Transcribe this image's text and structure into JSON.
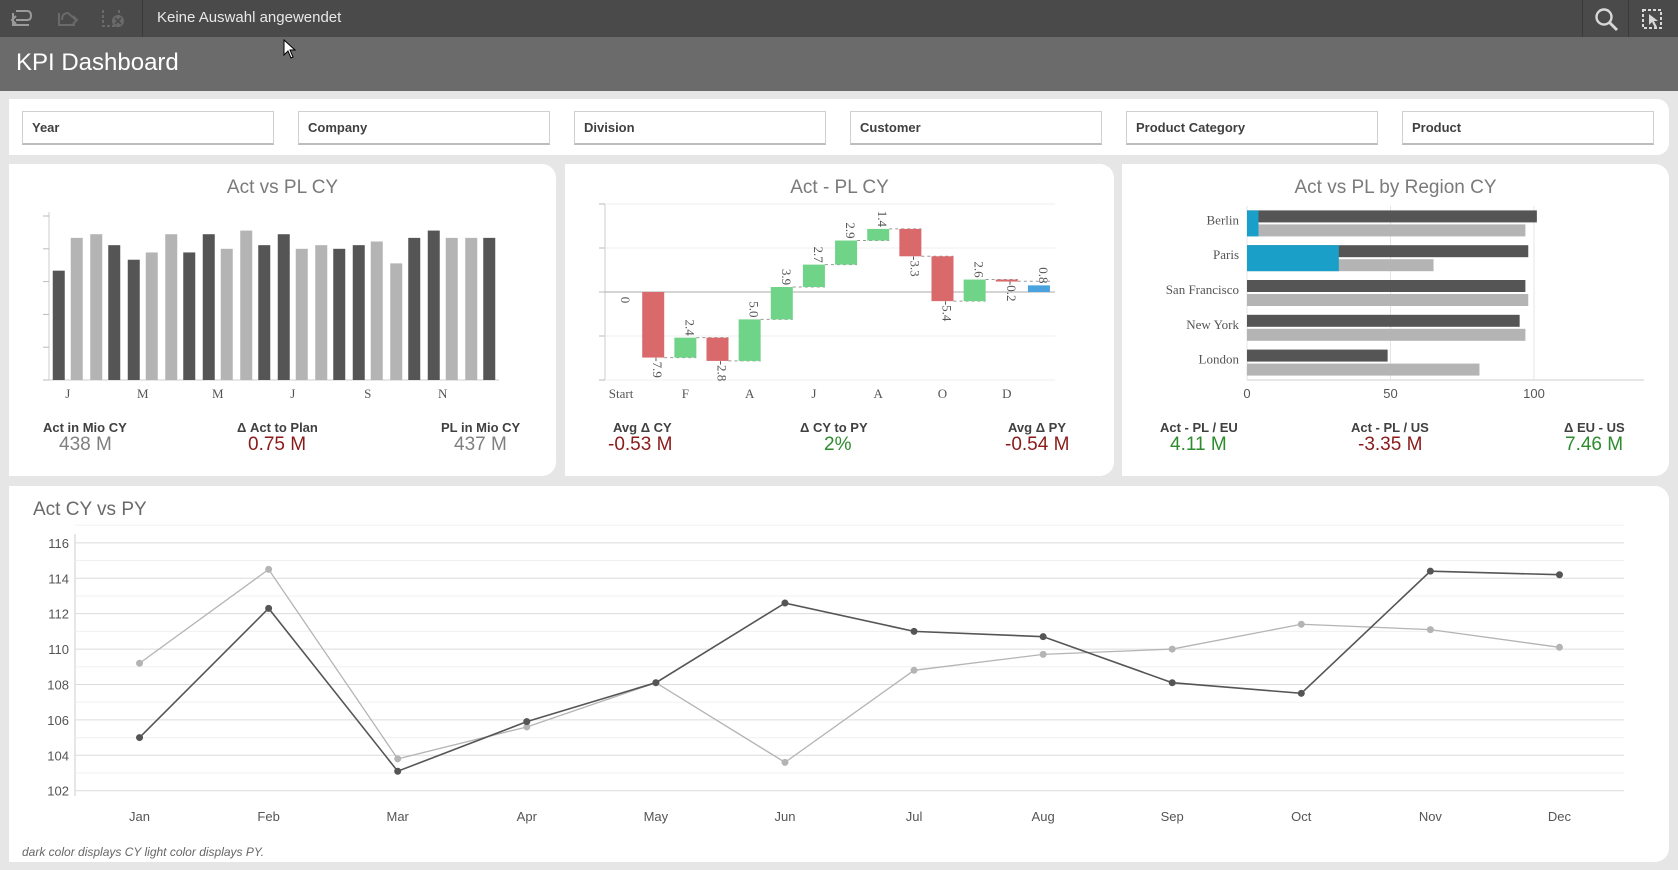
{
  "toolbar": {
    "selection_text": "Keine Auswahl angewendet"
  },
  "app": {
    "title": "KPI Dashboard"
  },
  "filters": [
    "Year",
    "Company",
    "Division",
    "Customer",
    "Product Category",
    "Product"
  ],
  "card1": {
    "title": "Act vs PL CY",
    "kpis": [
      {
        "label": "Act in Mio CY",
        "value": "438 M",
        "color": "#808080"
      },
      {
        "label": "Δ Act to Plan",
        "value": "0.75 M",
        "color": "#8b1a1a"
      },
      {
        "label": "PL in Mio CY",
        "value": "437 M",
        "color": "#808080"
      }
    ]
  },
  "card2": {
    "title": "Act - PL CY",
    "kpis": [
      {
        "label": "Avg Δ CY",
        "value": "-0.53 M",
        "color": "#8b1a1a"
      },
      {
        "label": "Δ CY to PY",
        "value": "2%",
        "color": "#2e8b2e"
      },
      {
        "label": "Avg Δ PY",
        "value": "-0.54 M",
        "color": "#8b1a1a"
      }
    ]
  },
  "card3": {
    "title": "Act vs PL by Region CY",
    "kpis": [
      {
        "label": "Act - PL / EU",
        "value": "4.11 M",
        "color": "#2e8b2e"
      },
      {
        "label": "Act - PL / US",
        "value": "-3.35 M",
        "color": "#8b1a1a"
      },
      {
        "label": "Δ EU - US",
        "value": "7.46 M",
        "color": "#2e8b2e"
      }
    ]
  },
  "line_card": {
    "title": "Act CY vs PY",
    "footnote": "dark color displays CY light color displays PY."
  },
  "colors": {
    "dark": "#555555",
    "light": "#b4b4b4",
    "positive": "#6fd487",
    "negative": "#d9696b",
    "highlight": "#1aa0c8"
  },
  "chart_data": [
    {
      "type": "bar",
      "title": "Act vs PL CY",
      "categories": [
        "J",
        "",
        "M",
        "",
        "M",
        "",
        "J",
        "",
        "S",
        "",
        "N",
        ""
      ],
      "x_tick_labels": [
        "J",
        "M",
        "M",
        "J",
        "S",
        "N"
      ],
      "series": [],
      "pairs": [
        [
          30,
          39
        ],
        [
          40,
          37
        ],
        [
          33,
          35
        ],
        [
          40,
          35
        ],
        [
          40,
          36
        ],
        [
          41,
          37
        ],
        [
          40,
          36
        ],
        [
          37,
          36
        ],
        [
          37,
          38
        ],
        [
          32,
          39
        ],
        [
          41,
          39
        ],
        [
          39,
          39
        ]
      ]
    },
    {
      "type": "bar",
      "title": "Act - PL CY",
      "x_tick_labels": [
        "Start",
        "F",
        "A",
        "J",
        "A",
        "O",
        "D"
      ],
      "steps": [
        {
          "label": "0",
          "value": 0
        },
        {
          "label": "-7.9",
          "value": -7.9
        },
        {
          "label": "2.4",
          "value": 2.4
        },
        {
          "label": "-2.8",
          "value": -2.8
        },
        {
          "label": "5.0",
          "value": 5.0
        },
        {
          "label": "3.9",
          "value": 3.9
        },
        {
          "label": "2.7",
          "value": 2.7
        },
        {
          "label": "2.9",
          "value": 2.9
        },
        {
          "label": "1.4",
          "value": 1.4
        },
        {
          "label": "-3.3",
          "value": -3.3
        },
        {
          "label": "-5.4",
          "value": -5.4
        },
        {
          "label": "2.6",
          "value": 2.6
        },
        {
          "label": "-0.2",
          "value": -0.2
        },
        {
          "label": "0.8",
          "value": 0.8
        }
      ]
    },
    {
      "type": "bar",
      "title": "Act vs PL by Region CY",
      "categories": [
        "Berlin",
        "Paris",
        "San Francisco",
        "New York",
        "London"
      ],
      "x_ticks": [
        0,
        50,
        100
      ],
      "xlim": [
        0,
        100
      ],
      "series": [
        {
          "values": [
            101,
            98,
            97,
            95,
            49
          ]
        },
        {
          "values": [
            97,
            65,
            98,
            97,
            81
          ]
        },
        {
          "values": [
            4,
            32,
            0,
            0,
            0
          ]
        }
      ]
    },
    {
      "type": "line",
      "title": "Act CY vs PY",
      "categories": [
        "Jan",
        "Feb",
        "Mar",
        "Apr",
        "May",
        "Jun",
        "Jul",
        "Aug",
        "Sep",
        "Oct",
        "Nov",
        "Dec"
      ],
      "y_ticks": [
        102,
        104,
        106,
        108,
        110,
        112,
        114,
        116
      ],
      "ylim": [
        101.7,
        116.5
      ],
      "series": [
        {
          "values": [
            105.0,
            112.3,
            103.1,
            105.9,
            108.1,
            112.6,
            111.0,
            110.7,
            108.1,
            107.5,
            114.4,
            114.2
          ]
        },
        {
          "values": [
            109.2,
            114.5,
            103.8,
            105.6,
            108.1,
            103.6,
            108.8,
            109.7,
            110.0,
            111.4,
            111.1,
            110.1
          ]
        }
      ]
    }
  ]
}
